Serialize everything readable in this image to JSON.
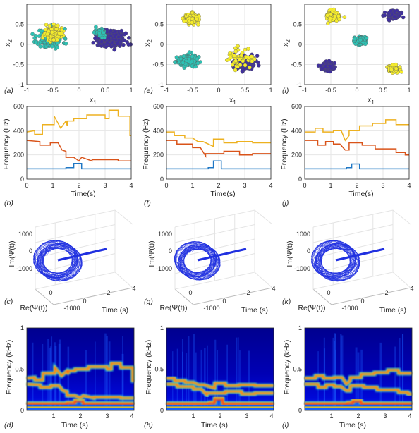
{
  "figure": {
    "colors": {
      "cluster_yellow": "#f5ec2c",
      "cluster_cyan": "#2ec2b4",
      "cluster_purple": "#3f2f9e",
      "cluster_edge": "#5a5a5a",
      "freq_blue": "#1f77c4",
      "freq_orange": "#d95319",
      "freq_gold": "#edb120",
      "trajectory": "#2030e0",
      "grid": "#e6e6e6",
      "axis": "#262626"
    }
  },
  "chart_data": [
    {
      "id": "a",
      "panel_label": "(a)",
      "type": "scatter",
      "xlabel": "x",
      "xlabel_sub": "1",
      "ylabel": "x",
      "ylabel_sub": "2",
      "xlim": [
        -1,
        1
      ],
      "ylim": [
        -1,
        1
      ],
      "xticks": [
        -1,
        -0.5,
        0,
        0.5,
        1
      ],
      "xticklabels": [
        "-1",
        "-0.5",
        "0",
        "0.5",
        "1"
      ],
      "yticks": [
        -1,
        -0.5,
        0,
        0.5
      ],
      "yticklabels": [
        "-1",
        "-0.5",
        "0",
        "0.5"
      ],
      "grid": true,
      "clusters": [
        {
          "color": "cyan",
          "center": [
            -0.55,
            0.15
          ],
          "spread": [
            0.22,
            0.22
          ],
          "count": 190
        },
        {
          "color": "yellow",
          "center": [
            -0.5,
            0.28
          ],
          "spread": [
            0.13,
            0.13
          ],
          "count": 330
        },
        {
          "color": "purple",
          "center": [
            0.6,
            0.15
          ],
          "spread": [
            0.21,
            0.17
          ],
          "count": 330
        },
        {
          "color": "cyan",
          "center": [
            0.4,
            0.3
          ],
          "spread": [
            0.1,
            0.1
          ],
          "count": 40
        }
      ]
    },
    {
      "id": "e",
      "panel_label": "(e)",
      "type": "scatter",
      "xlabel": "x",
      "xlabel_sub": "1",
      "ylabel": "x",
      "ylabel_sub": "2",
      "xlim": [
        -1,
        1
      ],
      "ylim": [
        -1,
        1
      ],
      "xticks": [
        -1,
        -0.5,
        0,
        0.5,
        1
      ],
      "xticklabels": [
        "-1",
        "-0.5",
        "0",
        "0.5",
        "1"
      ],
      "yticks": [
        -1,
        -0.5,
        0,
        0.5
      ],
      "yticklabels": [
        "-1",
        "-0.5",
        "0",
        "0.5"
      ],
      "grid": true,
      "clusters": [
        {
          "color": "yellow",
          "center": [
            -0.55,
            0.65
          ],
          "spread": [
            0.12,
            0.11
          ],
          "count": 150
        },
        {
          "color": "cyan",
          "center": [
            -0.6,
            -0.4
          ],
          "spread": [
            0.16,
            0.11
          ],
          "count": 260
        },
        {
          "color": "purple",
          "center": [
            0.5,
            -0.45
          ],
          "spread": [
            0.18,
            0.14
          ],
          "count": 320
        },
        {
          "color": "yellow",
          "center": [
            0.4,
            -0.35
          ],
          "spread": [
            0.22,
            0.2
          ],
          "count": 45
        }
      ]
    },
    {
      "id": "i",
      "panel_label": "(i)",
      "type": "scatter",
      "xlabel": "x",
      "xlabel_sub": "1",
      "ylabel": "x",
      "ylabel_sub": "2",
      "xlim": [
        -1,
        1
      ],
      "ylim": [
        -1,
        1
      ],
      "xticks": [
        -1,
        -0.5,
        0,
        0.5,
        1
      ],
      "xticklabels": [
        "-1",
        "-0.5",
        "0",
        "0.5",
        "1"
      ],
      "yticks": [
        -1,
        -0.5,
        0,
        0.5
      ],
      "yticklabels": [
        "-1",
        "-0.5",
        "0",
        "0.5"
      ],
      "grid": true,
      "clusters": [
        {
          "color": "yellow",
          "center": [
            -0.45,
            0.7
          ],
          "spread": [
            0.12,
            0.1
          ],
          "count": 140
        },
        {
          "color": "purple",
          "center": [
            0.7,
            0.72
          ],
          "spread": [
            0.11,
            0.09
          ],
          "count": 120
        },
        {
          "color": "cyan",
          "center": [
            0.05,
            0.1
          ],
          "spread": [
            0.1,
            0.07
          ],
          "count": 160
        },
        {
          "color": "purple",
          "center": [
            -0.55,
            -0.55
          ],
          "spread": [
            0.1,
            0.09
          ],
          "count": 120
        },
        {
          "color": "yellow",
          "center": [
            0.7,
            -0.6
          ],
          "spread": [
            0.1,
            0.09
          ],
          "count": 110
        }
      ]
    },
    {
      "id": "b",
      "panel_label": "(b)",
      "type": "line",
      "xlabel": "Time(s)",
      "ylabel": "Frequency (Hz)",
      "xlim": [
        0,
        4
      ],
      "ylim": [
        0,
        600
      ],
      "xticks": [
        0,
        1,
        2,
        3,
        4
      ],
      "xticklabels": [
        "0",
        "1",
        "2",
        "3",
        "4"
      ],
      "yticks": [
        0,
        200,
        400,
        600
      ],
      "yticklabels": [
        "0",
        "200",
        "400",
        "600"
      ],
      "grid": true,
      "series": [
        {
          "color": "blue",
          "x": [
            0,
            1.5,
            1.5,
            1.8,
            1.8,
            2.1,
            2.1,
            4
          ],
          "y": [
            85,
            85,
            95,
            95,
            130,
            130,
            85,
            85
          ]
        },
        {
          "color": "orange",
          "x": [
            0,
            0.5,
            0.5,
            0.9,
            0.9,
            1.2,
            1.35,
            1.5,
            1.5,
            1.8,
            2.0,
            2.1,
            2.5,
            2.5,
            3.5,
            3.5,
            4
          ],
          "y": [
            320,
            310,
            280,
            280,
            300,
            300,
            240,
            230,
            180,
            180,
            150,
            180,
            150,
            160,
            160,
            150,
            150
          ]
        },
        {
          "color": "gold",
          "x": [
            0,
            0.3,
            0.3,
            0.6,
            0.6,
            1.05,
            1.05,
            1.3,
            1.5,
            1.55,
            1.55,
            1.8,
            1.8,
            2.3,
            2.3,
            3.0,
            3.0,
            3.15,
            3.15,
            3.5,
            3.5,
            3.95,
            3.95,
            4
          ],
          "y": [
            390,
            400,
            370,
            370,
            450,
            450,
            520,
            420,
            480,
            440,
            480,
            480,
            500,
            500,
            530,
            530,
            500,
            500,
            570,
            570,
            520,
            520,
            360,
            360
          ]
        }
      ]
    },
    {
      "id": "f",
      "panel_label": "(f)",
      "type": "line",
      "xlabel": "Time(s)",
      "ylabel": "Frequency (Hz)",
      "xlim": [
        0,
        4
      ],
      "ylim": [
        0,
        600
      ],
      "xticks": [
        0,
        1,
        2,
        3,
        4
      ],
      "xticklabels": [
        "0",
        "1",
        "2",
        "3",
        "4"
      ],
      "yticks": [
        0,
        200,
        400,
        600
      ],
      "yticklabels": [
        "0",
        "200",
        "400",
        "600"
      ],
      "grid": true,
      "series": [
        {
          "color": "blue",
          "x": [
            0,
            1.6,
            1.6,
            1.8,
            1.8,
            2.1,
            2.1,
            4
          ],
          "y": [
            85,
            85,
            95,
            95,
            150,
            150,
            85,
            85
          ]
        },
        {
          "color": "orange",
          "x": [
            0,
            0.4,
            0.4,
            1.0,
            1.0,
            1.3,
            1.5,
            1.5,
            2.2,
            2.2,
            2.8,
            2.8,
            3.3,
            3.3,
            4
          ],
          "y": [
            320,
            320,
            290,
            290,
            260,
            260,
            190,
            210,
            210,
            230,
            230,
            200,
            200,
            210,
            210
          ]
        },
        {
          "color": "gold",
          "x": [
            0,
            0.3,
            0.3,
            0.7,
            0.7,
            1.0,
            1.2,
            1.4,
            1.6,
            1.8,
            1.8,
            2.2,
            2.2,
            2.7,
            2.7,
            3.3,
            3.3,
            4
          ],
          "y": [
            390,
            390,
            360,
            360,
            340,
            340,
            310,
            310,
            290,
            270,
            330,
            330,
            300,
            300,
            310,
            310,
            300,
            300
          ]
        }
      ]
    },
    {
      "id": "j",
      "panel_label": "(j)",
      "type": "line",
      "xlabel": "Time(s)",
      "ylabel": "Frequency (Hz)",
      "xlim": [
        0,
        4
      ],
      "ylim": [
        0,
        600
      ],
      "xticks": [
        0,
        1,
        2,
        3,
        4
      ],
      "xticklabels": [
        "0",
        "1",
        "2",
        "3",
        "4"
      ],
      "yticks": [
        0,
        200,
        400,
        600
      ],
      "yticklabels": [
        "0",
        "200",
        "400",
        "600"
      ],
      "grid": true,
      "series": [
        {
          "color": "blue",
          "x": [
            0,
            1.6,
            1.6,
            1.8,
            1.8,
            2.1,
            2.1,
            4
          ],
          "y": [
            85,
            85,
            95,
            95,
            125,
            125,
            85,
            85
          ]
        },
        {
          "color": "orange",
          "x": [
            0,
            0.5,
            0.5,
            0.8,
            0.8,
            1.1,
            1.1,
            1.35,
            1.55,
            1.7,
            1.7,
            2.2,
            2.2,
            2.7,
            2.7,
            3.5,
            3.5,
            3.85,
            3.85,
            4
          ],
          "y": [
            320,
            320,
            280,
            280,
            310,
            310,
            290,
            290,
            240,
            240,
            300,
            300,
            280,
            280,
            250,
            250,
            220,
            220,
            200,
            200
          ]
        },
        {
          "color": "gold",
          "x": [
            0,
            0.4,
            0.4,
            0.7,
            0.7,
            1.1,
            1.1,
            1.4,
            1.55,
            1.7,
            1.7,
            2.1,
            2.1,
            2.6,
            2.6,
            3.1,
            3.1,
            3.5,
            3.5,
            4
          ],
          "y": [
            390,
            390,
            420,
            420,
            390,
            390,
            400,
            400,
            320,
            360,
            400,
            400,
            440,
            440,
            460,
            460,
            490,
            490,
            450,
            450
          ]
        }
      ]
    },
    {
      "id": "c",
      "panel_label": "(c)",
      "type": "line3d",
      "xlabel": "Time (s)",
      "ylabel": "Re(Ψ(t))",
      "zlabel": "Im(Ψ(t))",
      "zticklabels": [
        "1000",
        "0",
        "-1000"
      ],
      "reticklabels": [
        "0",
        "-1000"
      ],
      "timeticklabels": [
        "0",
        "2",
        "4"
      ],
      "spiral_radius": 850,
      "spiral_turns": 55,
      "line_end_time": 3.9
    },
    {
      "id": "g",
      "panel_label": "(g)",
      "type": "line3d",
      "xlabel": "Time (s)",
      "ylabel": "Re(Ψ(t))",
      "zlabel": "Im(Ψ(t))",
      "zticklabels": [
        "1000",
        "0",
        "-1000"
      ],
      "reticklabels": [
        "0",
        "-1000"
      ],
      "timeticklabels": [
        "0",
        "2",
        "4"
      ],
      "spiral_radius": 800,
      "spiral_turns": 55,
      "line_end_time": 3.9
    },
    {
      "id": "k",
      "panel_label": "(k)",
      "type": "line3d",
      "xlabel": "Time (s)",
      "ylabel": "Re(Ψ(t))",
      "zlabel": "Im(Ψ(t))",
      "zticklabels": [
        "1000",
        "0",
        "-1000"
      ],
      "reticklabels": [
        "0",
        "-1000"
      ],
      "timeticklabels": [
        "0",
        "2",
        "4"
      ],
      "spiral_radius": 850,
      "spiral_turns": 55,
      "line_end_time": 3.9
    },
    {
      "id": "d",
      "panel_label": "(d)",
      "type": "heatmap",
      "xlabel": "Time (s)",
      "ylabel": "Frequency (kHz)",
      "xlim": [
        0,
        4
      ],
      "ylim": [
        0,
        1
      ],
      "xticks": [
        1,
        2,
        3,
        4
      ],
      "xticklabels": [
        "1",
        "2",
        "3",
        "4"
      ],
      "yticks": [
        0,
        0.5,
        1
      ],
      "yticklabels": [
        "0",
        "0.5",
        "1"
      ],
      "colormap": "jet",
      "ridges_from": "b"
    },
    {
      "id": "h",
      "panel_label": "(h)",
      "type": "heatmap",
      "xlabel": "Time (s)",
      "ylabel": "Frequency (kHz)",
      "xlim": [
        0,
        4
      ],
      "ylim": [
        0,
        1
      ],
      "xticks": [
        1,
        2,
        3,
        4
      ],
      "xticklabels": [
        "1",
        "2",
        "3",
        "4"
      ],
      "yticks": [
        0,
        0.5,
        1
      ],
      "yticklabels": [
        "0",
        "0.5",
        "1"
      ],
      "colormap": "jet",
      "ridges_from": "f"
    },
    {
      "id": "l",
      "panel_label": "(l)",
      "type": "heatmap",
      "xlabel": "Time (s)",
      "ylabel": "Frequency (kHz)",
      "xlim": [
        0,
        4
      ],
      "ylim": [
        0,
        1
      ],
      "xticks": [
        1,
        2,
        3,
        4
      ],
      "xticklabels": [
        "1",
        "2",
        "3",
        "4"
      ],
      "yticks": [
        0,
        0.5,
        1
      ],
      "yticklabels": [
        "0",
        "0.5",
        "1"
      ],
      "colormap": "jet",
      "ridges_from": "j"
    }
  ]
}
